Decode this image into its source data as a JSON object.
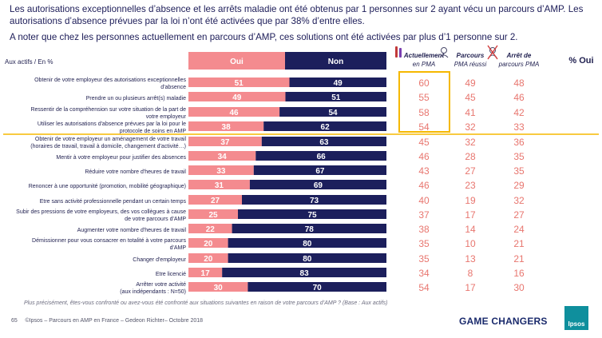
{
  "intro": {
    "line1": "Les autorisations exceptionnelles d’absence et les arrêts maladie ont été obtenus par 1 personnes sur 2 ayant vécu un parcours d’AMP. Les autorisations d’absence prévues par la loi n’ont été activées que par 38% d’entre elles.",
    "line2": "A noter que chez les personnes actuellement en parcours d’AMP, ces solutions ont été activées par plus d’1 personne sur 2."
  },
  "base_label": "Aux actifs / En %",
  "footer": {
    "question": "Plus précisément, êtes-vous confronté ou avez-vous été confronté aux  situations suivantes en raison de votre parcours d’AMP ? (Base : Aux actifs)",
    "page": "65",
    "copyright": "©Ipsos – Parcours en AMP en France – Gedeon Richter– Octobre 2018",
    "tagline": "GAME CHANGERS",
    "logo": "Ipsos"
  },
  "colors": {
    "oui": "#f48b8f",
    "non": "#1c1f5c",
    "accent": "#f5b800",
    "values": "#e8766f",
    "text": "#1f1f4f"
  },
  "chart_data": {
    "type": "bar",
    "stacked": true,
    "orientation": "horizontal",
    "xlim": [
      0,
      100
    ],
    "series": [
      {
        "name": "Oui",
        "color": "#f48b8f",
        "values": [
          51,
          49,
          46,
          38,
          37,
          34,
          33,
          31,
          27,
          25,
          22,
          20,
          20,
          17,
          30
        ]
      },
      {
        "name": "Non",
        "color": "#1c1f5c",
        "values": [
          49,
          51,
          54,
          62,
          63,
          66,
          67,
          69,
          73,
          75,
          78,
          80,
          80,
          83,
          70
        ]
      }
    ],
    "categories": [
      [
        "Obtenir de votre employeur des autorisations exceptionnelles",
        "d'absence"
      ],
      [
        "Prendre un ou plusieurs arrêt(s) maladie"
      ],
      [
        "Ressentir de la compréhension sur votre situation de la part de",
        "votre employeur"
      ],
      [
        "Utiliser les autorisations d'absence prévues par la loi pour le",
        "protocole de soins en AMP"
      ],
      [
        "Obtenir de votre employeur un aménagement de votre travail",
        "(horaires de travail, travail à domicile, changement d'activité…)"
      ],
      [
        "Mentir à votre employeur pour justifier des absences"
      ],
      [
        "Réduire votre nombre d'heures de travail"
      ],
      [
        "Renoncer à une opportunité (promotion, mobilité géographique)"
      ],
      [
        "Etre sans activité professionnelle pendant un certain temps"
      ],
      [
        "Subir des pressions de votre employeurs, des vos collègues à cause",
        "de votre parcours d'AMP"
      ],
      [
        "Augmenter votre nombre d'heures de travail"
      ],
      [
        "Démissionner pour vous consacrer en totalité à votre parcours",
        "d'AMP"
      ],
      [
        "Changer d'employeur"
      ],
      [
        "Etre licencié"
      ],
      [
        "Arrêter votre activité",
        "(aux indépendants : N=50)"
      ]
    ],
    "columns": [
      {
        "label": [
          "Actuellement",
          "en PMA"
        ],
        "icon": "syringe-vials-icon",
        "values": [
          60,
          55,
          58,
          54,
          45,
          46,
          43,
          46,
          40,
          37,
          38,
          35,
          35,
          34,
          54
        ]
      },
      {
        "label": [
          "Parcours",
          "PMA réussi"
        ],
        "icon": "baby-icon",
        "values": [
          49,
          45,
          41,
          32,
          32,
          28,
          27,
          23,
          19,
          17,
          14,
          10,
          13,
          8,
          17
        ]
      },
      {
        "label": [
          "Arrêt de",
          "parcours PMA"
        ],
        "icon": "crossed-baby-icon",
        "values": [
          48,
          46,
          42,
          33,
          36,
          35,
          35,
          29,
          32,
          27,
          24,
          21,
          21,
          16,
          30
        ]
      }
    ],
    "header_right": "% Oui"
  }
}
